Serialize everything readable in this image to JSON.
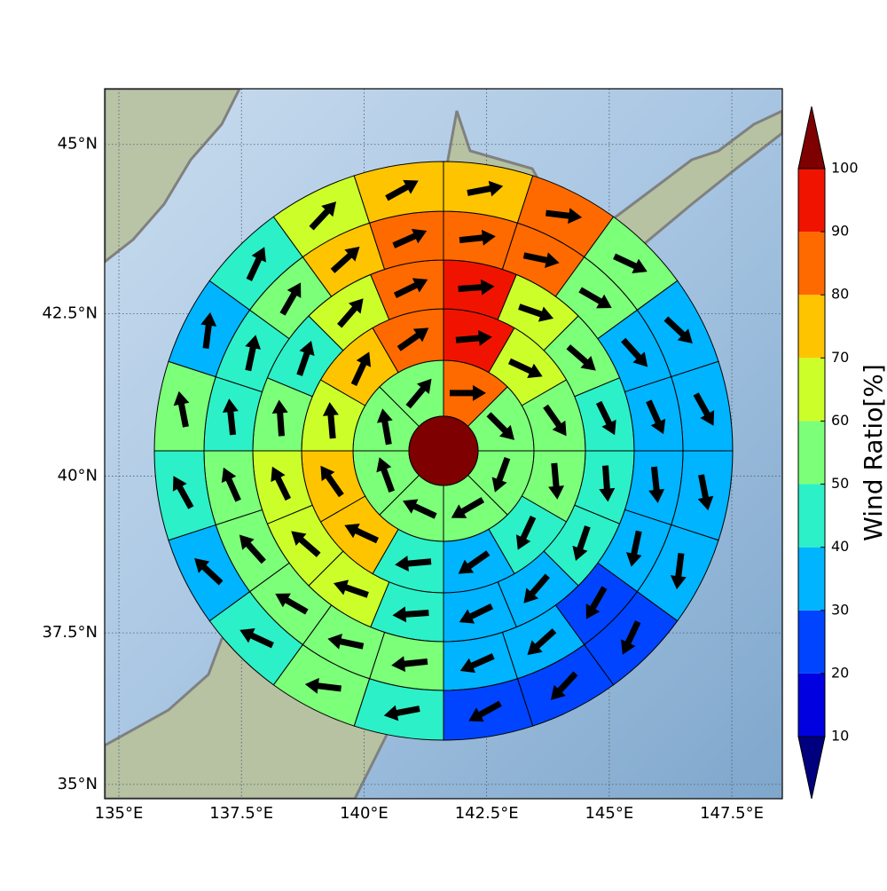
{
  "chart_data": {
    "type": "polar_heatmap",
    "xlim": [
      134.71,
      148.53
    ],
    "ylim": [
      34.76,
      45.8
    ],
    "xticks": [
      {
        "value": 135,
        "label": "135°E"
      },
      {
        "value": 137.5,
        "label": "137.5°E"
      },
      {
        "value": 140,
        "label": "140°E"
      },
      {
        "value": 142.5,
        "label": "142.5°E"
      },
      {
        "value": 145,
        "label": "145°E"
      },
      {
        "value": 147.5,
        "label": "147.5°E"
      }
    ],
    "yticks": [
      {
        "value": 35,
        "label": "35°N"
      },
      {
        "value": 37.5,
        "label": "37.5°N"
      },
      {
        "value": 40,
        "label": "40°N"
      },
      {
        "value": 42.5,
        "label": "42.5°N"
      },
      {
        "value": 45,
        "label": "45°N"
      }
    ],
    "grid": true,
    "center_value": 105,
    "rings": [
      {
        "values": [
          85,
          55,
          55,
          55,
          55,
          55,
          55,
          55
        ],
        "directions": [
          90,
          135,
          200,
          240,
          295,
          340,
          350,
          40
        ]
      },
      {
        "values": [
          95,
          65,
          55,
          55,
          45,
          35,
          45,
          75,
          75,
          65,
          75,
          85
        ],
        "directions": [
          85,
          115,
          145,
          175,
          205,
          235,
          265,
          295,
          325,
          355,
          25,
          55
        ]
      },
      {
        "values": [
          95,
          65,
          55,
          45,
          45,
          45,
          35,
          35,
          45,
          65,
          65,
          65,
          55,
          45,
          65,
          85
        ],
        "directions": [
          86,
          109,
          131,
          154,
          176,
          199,
          221,
          244,
          266,
          289,
          311,
          334,
          356,
          19,
          41,
          64
        ]
      },
      {
        "values": [
          85,
          85,
          55,
          35,
          35,
          35,
          35,
          25,
          35,
          35,
          55,
          55,
          55,
          55,
          55,
          45,
          45,
          55,
          75,
          85
        ],
        "directions": [
          84,
          102,
          120,
          138,
          156,
          174,
          192,
          210,
          228,
          246,
          264,
          282,
          300,
          318,
          336,
          354,
          12,
          30,
          48,
          66
        ]
      },
      {
        "values": [
          75,
          85,
          55,
          35,
          35,
          35,
          35,
          25,
          25,
          25,
          45,
          55,
          45,
          35,
          45,
          55,
          35,
          45,
          65,
          75
        ],
        "directions": [
          79,
          97,
          115,
          133,
          151,
          169,
          187,
          205,
          223,
          241,
          259,
          277,
          295,
          313,
          331,
          349,
          7,
          25,
          43,
          61
        ]
      }
    ],
    "colorbar": {
      "label": "Wind Ratio[%]",
      "ticks": [
        10,
        20,
        30,
        40,
        50,
        60,
        70,
        80,
        90,
        100
      ],
      "colors": [
        "#0000e0",
        "#0044ff",
        "#00b4ff",
        "#2cf0c8",
        "#7cff79",
        "#ccff2a",
        "#ffc400",
        "#ff6a00",
        "#f01400"
      ],
      "under_color": "#00007f",
      "over_color": "#7f0000"
    }
  }
}
